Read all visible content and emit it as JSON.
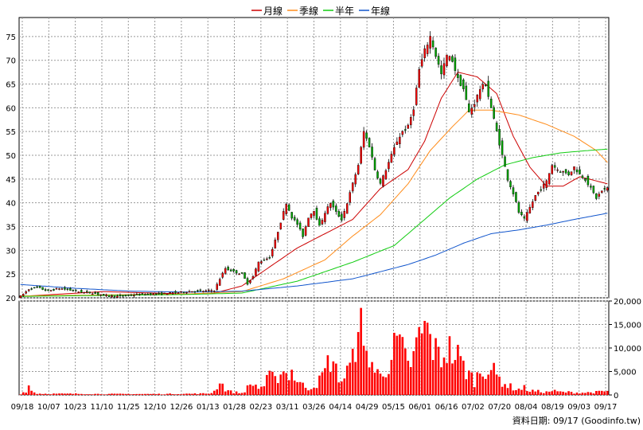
{
  "legend": [
    {
      "label": "月線",
      "color": "#cc0000"
    },
    {
      "label": "季線",
      "color": "#ff8c1a"
    },
    {
      "label": "半年",
      "color": "#11cc11"
    },
    {
      "label": "年線",
      "color": "#1155cc"
    }
  ],
  "credit": "資料日期: 09/17  (Goodinfo.tw)",
  "chart_data": [
    {
      "type": "candlestick",
      "title": "",
      "ylim": [
        20,
        79
      ],
      "y_ticks": [
        20,
        25,
        30,
        35,
        40,
        45,
        50,
        55,
        60,
        65,
        70,
        75
      ],
      "grid": true,
      "legend_position": "top-center",
      "up_color": "#ff0000",
      "down_color": "#00aa00",
      "x_tick_labels": [
        "09/18",
        "10/07",
        "10/23",
        "11/10",
        "11/25",
        "12/10",
        "12/26",
        "01/13",
        "01/28",
        "02/23",
        "03/11",
        "03/26",
        "04/14",
        "04/29",
        "05/15",
        "06/01",
        "06/16",
        "07/02",
        "07/20",
        "08/04",
        "08/19",
        "09/03",
        "09/17"
      ],
      "close_anchors": [
        [
          0,
          20.3
        ],
        [
          3,
          21.8
        ],
        [
          6,
          22.2
        ],
        [
          10,
          21.4
        ],
        [
          14,
          22.0
        ],
        [
          18,
          21.6
        ],
        [
          22,
          21.2
        ],
        [
          26,
          21.0
        ],
        [
          30,
          20.6
        ],
        [
          34,
          20.3
        ],
        [
          38,
          20.4
        ],
        [
          42,
          20.7
        ],
        [
          46,
          20.8
        ],
        [
          50,
          20.8
        ],
        [
          54,
          21.0
        ],
        [
          58,
          21.2
        ],
        [
          62,
          21.4
        ],
        [
          66,
          21.4
        ],
        [
          70,
          21.6
        ],
        [
          72,
          24.0
        ],
        [
          74,
          26.2
        ],
        [
          77,
          25.5
        ],
        [
          80,
          25.0
        ],
        [
          82,
          23.0
        ],
        [
          84,
          24.5
        ],
        [
          86,
          27.5
        ],
        [
          88,
          28.0
        ],
        [
          90,
          28.5
        ],
        [
          92,
          32.0
        ],
        [
          94,
          36.0
        ],
        [
          96,
          40.0
        ],
        [
          98,
          37.0
        ],
        [
          100,
          35.5
        ],
        [
          102,
          33.0
        ],
        [
          104,
          37.0
        ],
        [
          106,
          38.5
        ],
        [
          108,
          35.0
        ],
        [
          110,
          38.0
        ],
        [
          112,
          40.0
        ],
        [
          114,
          38.0
        ],
        [
          116,
          36.5
        ],
        [
          118,
          40.0
        ],
        [
          120,
          44.0
        ],
        [
          122,
          48.0
        ],
        [
          124,
          55.0
        ],
        [
          126,
          52.0
        ],
        [
          128,
          47.0
        ],
        [
          130,
          44.0
        ],
        [
          132,
          47.0
        ],
        [
          134,
          50.0
        ],
        [
          136,
          53.0
        ],
        [
          138,
          55.0
        ],
        [
          140,
          56.0
        ],
        [
          142,
          60.0
        ],
        [
          144,
          68.0
        ],
        [
          146,
          72.0
        ],
        [
          148,
          75.0
        ],
        [
          150,
          71.0
        ],
        [
          152,
          67.0
        ],
        [
          154,
          71.0
        ],
        [
          156,
          70.0
        ],
        [
          158,
          66.0
        ],
        [
          160,
          64.0
        ],
        [
          162,
          59.0
        ],
        [
          164,
          61.0
        ],
        [
          166,
          64.0
        ],
        [
          168,
          65.0
        ],
        [
          170,
          60.0
        ],
        [
          172,
          55.0
        ],
        [
          174,
          50.0
        ],
        [
          176,
          45.0
        ],
        [
          178,
          42.0
        ],
        [
          180,
          38.0
        ],
        [
          182,
          36.5
        ],
        [
          184,
          39.0
        ],
        [
          186,
          41.5
        ],
        [
          188,
          43.0
        ],
        [
          190,
          44.5
        ],
        [
          192,
          48.0
        ],
        [
          194,
          47.0
        ],
        [
          196,
          46.5
        ],
        [
          198,
          46.0
        ],
        [
          200,
          47.5
        ],
        [
          202,
          46.0
        ],
        [
          204,
          45.0
        ],
        [
          206,
          43.0
        ],
        [
          208,
          41.0
        ],
        [
          210,
          42.5
        ],
        [
          212,
          43.0
        ]
      ],
      "moving_averages": [
        {
          "name": "月線",
          "color": "#cc0000",
          "anchors": [
            [
              0,
              20.3
            ],
            [
              30,
              21.3
            ],
            [
              60,
              20.8
            ],
            [
              70,
              21.0
            ],
            [
              80,
              22.5
            ],
            [
              90,
              26.5
            ],
            [
              100,
              30.5
            ],
            [
              110,
              33.5
            ],
            [
              120,
              36.5
            ],
            [
              130,
              43.0
            ],
            [
              140,
              47.0
            ],
            [
              146,
              53.0
            ],
            [
              152,
              62.0
            ],
            [
              158,
              67.5
            ],
            [
              165,
              66.5
            ],
            [
              172,
              63.0
            ],
            [
              178,
              54.0
            ],
            [
              184,
              47.5
            ],
            [
              190,
              43.5
            ],
            [
              196,
              43.5
            ],
            [
              202,
              45.5
            ],
            [
              212,
              44.0
            ]
          ]
        },
        {
          "name": "季線",
          "color": "#ff8c1a",
          "anchors": [
            [
              0,
              20.4
            ],
            [
              60,
              20.8
            ],
            [
              80,
              21.3
            ],
            [
              95,
              24.0
            ],
            [
              110,
              28.0
            ],
            [
              120,
              33.0
            ],
            [
              130,
              37.5
            ],
            [
              140,
              44.0
            ],
            [
              148,
              51.0
            ],
            [
              156,
              56.0
            ],
            [
              162,
              59.5
            ],
            [
              170,
              59.5
            ],
            [
              180,
              58.5
            ],
            [
              190,
              56.5
            ],
            [
              200,
              54.0
            ],
            [
              208,
              51.0
            ],
            [
              212,
              48.5
            ]
          ]
        },
        {
          "name": "半年",
          "color": "#11cc11",
          "anchors": [
            [
              0,
              20.3
            ],
            [
              60,
              20.7
            ],
            [
              80,
              21.0
            ],
            [
              100,
              23.5
            ],
            [
              120,
              27.5
            ],
            [
              135,
              31.0
            ],
            [
              145,
              36.0
            ],
            [
              155,
              41.0
            ],
            [
              165,
              45.0
            ],
            [
              175,
              48.0
            ],
            [
              185,
              49.5
            ],
            [
              195,
              50.5
            ],
            [
              205,
              51.0
            ],
            [
              212,
              51.3
            ]
          ]
        },
        {
          "name": "年線",
          "color": "#1155cc",
          "anchors": [
            [
              0,
              22.8
            ],
            [
              20,
              22.0
            ],
            [
              40,
              21.4
            ],
            [
              60,
              21.2
            ],
            [
              80,
              21.4
            ],
            [
              100,
              22.5
            ],
            [
              120,
              24.0
            ],
            [
              140,
              27.0
            ],
            [
              150,
              29.0
            ],
            [
              160,
              31.5
            ],
            [
              170,
              33.5
            ],
            [
              180,
              34.3
            ],
            [
              190,
              35.3
            ],
            [
              200,
              36.5
            ],
            [
              212,
              37.8
            ]
          ]
        }
      ]
    },
    {
      "type": "bar",
      "title": "",
      "ylim": [
        0,
        20000
      ],
      "y_ticks": [
        0,
        5000,
        10000,
        15000,
        20000
      ],
      "y_tick_labels": [
        "0",
        "5,000",
        "10,000",
        "15,000",
        "20,000"
      ],
      "color": "#ff0000",
      "grid": true,
      "volume_anchors": [
        [
          0,
          200
        ],
        [
          2,
          900
        ],
        [
          3,
          2000
        ],
        [
          4,
          900
        ],
        [
          6,
          300
        ],
        [
          10,
          250
        ],
        [
          20,
          250
        ],
        [
          30,
          200
        ],
        [
          40,
          200
        ],
        [
          50,
          200
        ],
        [
          60,
          250
        ],
        [
          68,
          300
        ],
        [
          70,
          800
        ],
        [
          72,
          3000
        ],
        [
          74,
          1200
        ],
        [
          76,
          700
        ],
        [
          80,
          400
        ],
        [
          82,
          1500
        ],
        [
          84,
          2500
        ],
        [
          86,
          1500
        ],
        [
          88,
          2000
        ],
        [
          90,
          4000
        ],
        [
          92,
          3000
        ],
        [
          94,
          5500
        ],
        [
          96,
          4500
        ],
        [
          98,
          5000
        ],
        [
          100,
          3000
        ],
        [
          102,
          2000
        ],
        [
          104,
          1500
        ],
        [
          106,
          2000
        ],
        [
          108,
          3000
        ],
        [
          110,
          5000
        ],
        [
          112,
          8000
        ],
        [
          114,
          5000
        ],
        [
          116,
          3000
        ],
        [
          118,
          5000
        ],
        [
          120,
          7000
        ],
        [
          121,
          12000
        ],
        [
          122,
          20000
        ],
        [
          123,
          14000
        ],
        [
          124,
          8000
        ],
        [
          126,
          9000
        ],
        [
          128,
          5000
        ],
        [
          130,
          4000
        ],
        [
          132,
          6000
        ],
        [
          134,
          8000
        ],
        [
          136,
          11000
        ],
        [
          138,
          9000
        ],
        [
          140,
          6000
        ],
        [
          142,
          8000
        ],
        [
          144,
          12000
        ],
        [
          146,
          14000
        ],
        [
          148,
          12000
        ],
        [
          150,
          9000
        ],
        [
          152,
          8000
        ],
        [
          154,
          10000
        ],
        [
          156,
          9000
        ],
        [
          158,
          8000
        ],
        [
          160,
          6000
        ],
        [
          162,
          4500
        ],
        [
          164,
          3000
        ],
        [
          166,
          5000
        ],
        [
          168,
          6000
        ],
        [
          170,
          5500
        ],
        [
          172,
          4000
        ],
        [
          174,
          3000
        ],
        [
          176,
          2000
        ],
        [
          178,
          1500
        ],
        [
          180,
          1200
        ],
        [
          182,
          1500
        ],
        [
          184,
          900
        ],
        [
          186,
          800
        ],
        [
          188,
          700
        ],
        [
          190,
          600
        ],
        [
          192,
          900
        ],
        [
          194,
          700
        ],
        [
          196,
          600
        ],
        [
          198,
          600
        ],
        [
          200,
          500
        ],
        [
          204,
          500
        ],
        [
          208,
          600
        ],
        [
          212,
          800
        ]
      ]
    }
  ]
}
